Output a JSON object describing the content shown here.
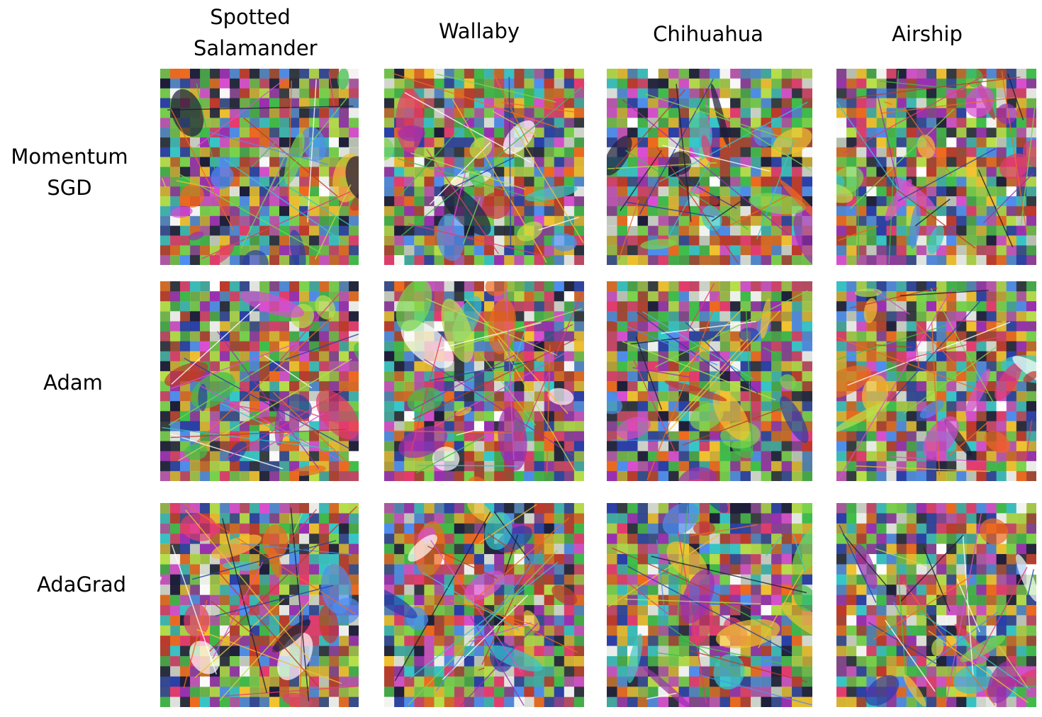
{
  "columns": [
    "Spotted Salamander",
    "Wallaby",
    "Chihuahua",
    "Airship"
  ],
  "rows": [
    "Momentum SGD",
    "Adam",
    "AdaGrad"
  ]
}
